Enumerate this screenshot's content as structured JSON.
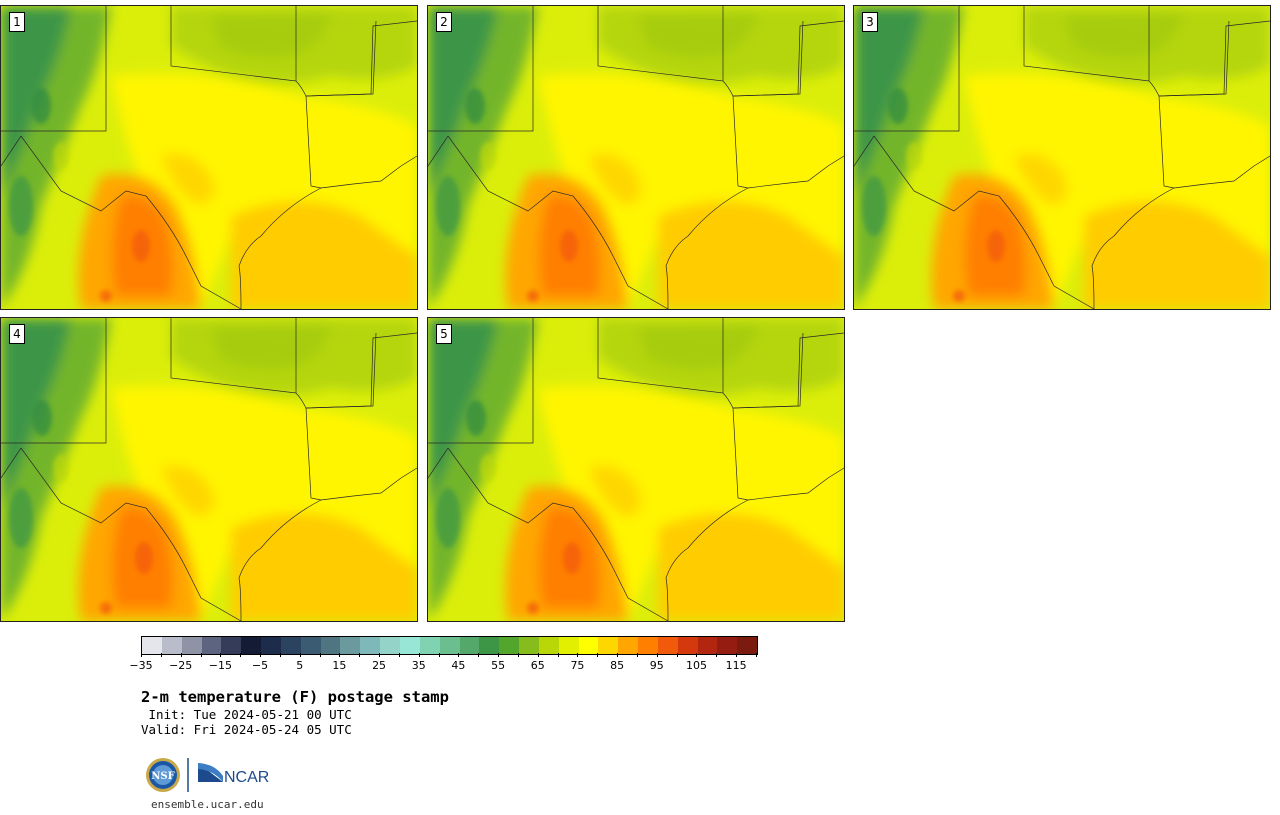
{
  "panels": [
    {
      "label": "1"
    },
    {
      "label": "2"
    },
    {
      "label": "3"
    },
    {
      "label": "4"
    },
    {
      "label": "5"
    }
  ],
  "colorbar": {
    "colors": [
      "#e4e6ec",
      "#b8bccb",
      "#8e93a6",
      "#5d6480",
      "#353c5a",
      "#141c35",
      "#1d2c4a",
      "#2b4360",
      "#3b5b73",
      "#4f7482",
      "#6a9a9e",
      "#7fb8b8",
      "#93d3c8",
      "#98e6d6",
      "#7fd3b0",
      "#6bbf8e",
      "#53a86a",
      "#3c9646",
      "#53a62c",
      "#86bd1c",
      "#b9d707",
      "#e2ef00",
      "#ffff00",
      "#ffd700",
      "#ffa600",
      "#ff7f00",
      "#f25a0b",
      "#d4380d",
      "#b22610",
      "#941c10",
      "#7b1a0e"
    ],
    "tick_labels": [
      "−35",
      "−25",
      "−15",
      "−5",
      "5",
      "15",
      "25",
      "35",
      "45",
      "55",
      "65",
      "75",
      "85",
      "95",
      "105",
      "115"
    ]
  },
  "header": {
    "title": "2-m temperature (F) postage stamp",
    "init": " Init: Tue 2024-05-21 00 UTC",
    "valid": "Valid: Fri 2024-05-24 05 UTC"
  },
  "footer": {
    "nsf_logo_text": "NSF",
    "ncar_logo_text": "NCAR",
    "site": "ensemble.ucar.edu"
  }
}
